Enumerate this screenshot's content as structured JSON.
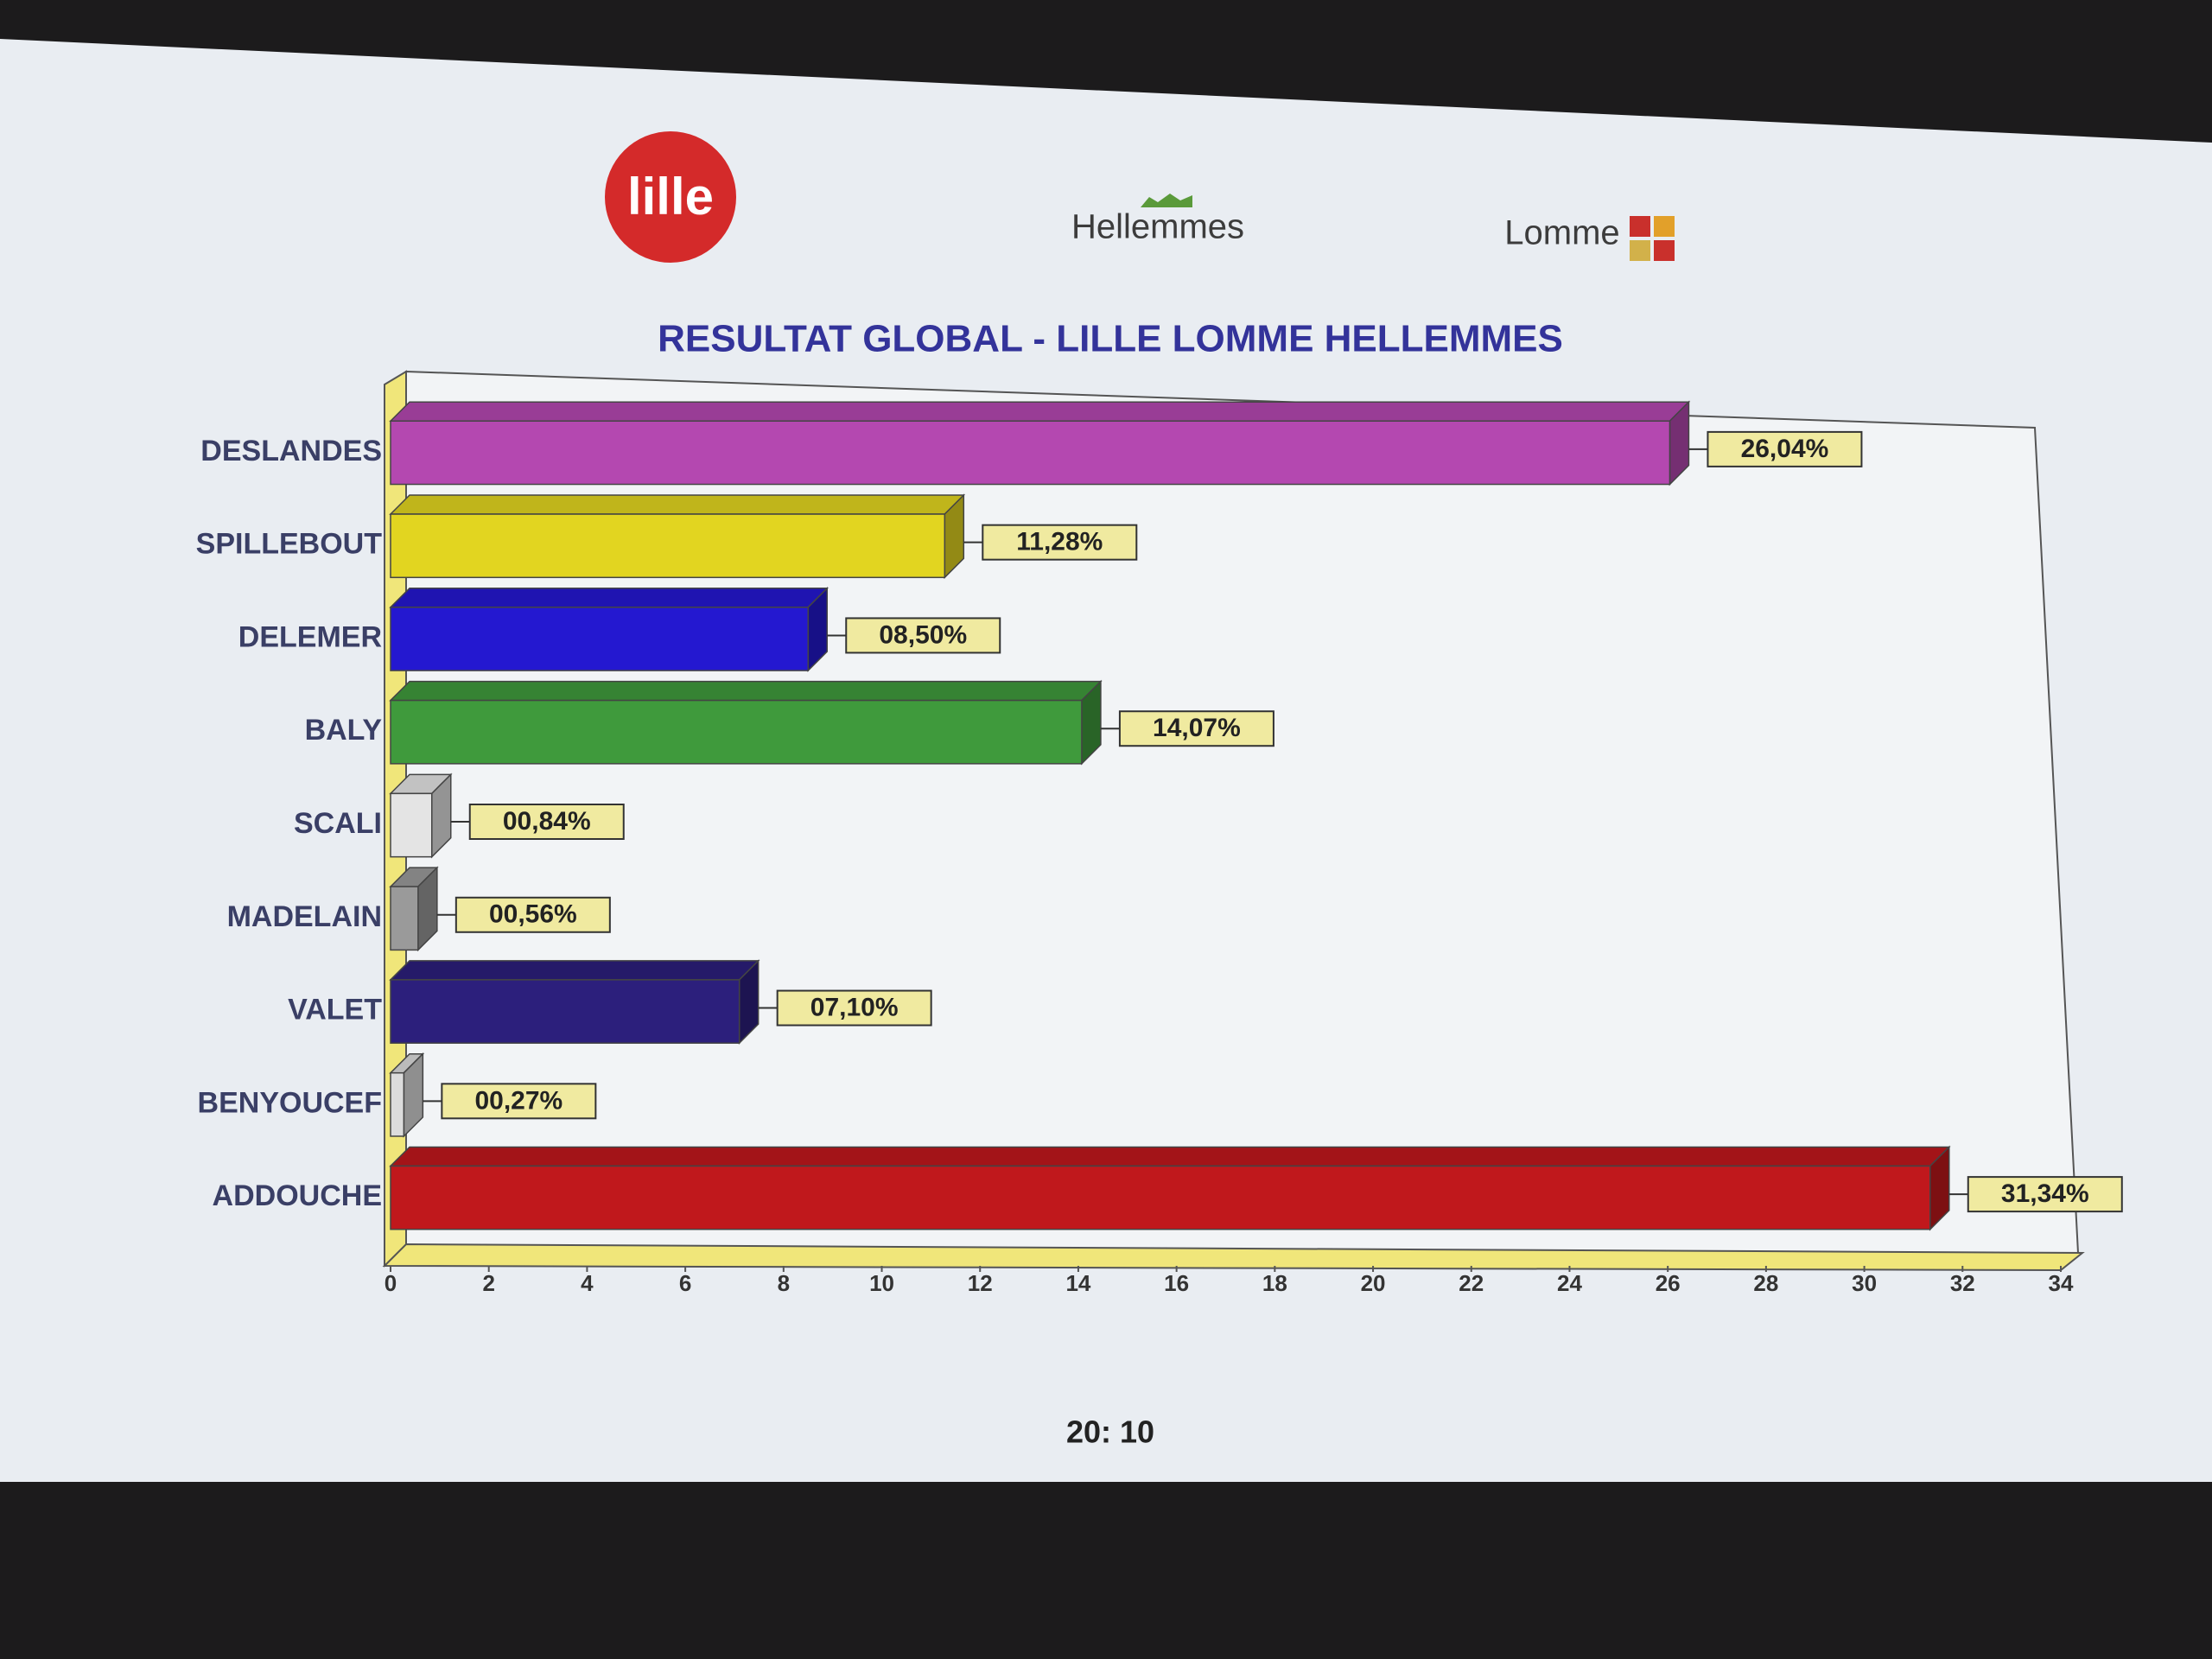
{
  "header": {
    "logos": [
      "lille",
      "Hellemmes",
      "Lomme"
    ]
  },
  "chart_data": {
    "type": "bar",
    "orientation": "horizontal",
    "title": "RESULTAT GLOBAL - LILLE LOMME HELLEMMES",
    "categories": [
      "DESLANDES",
      "SPILLEBOUT",
      "DELEMER",
      "BALY",
      "SCALI",
      "MADELAIN",
      "VALET",
      "BENYOUCEF",
      "ADDOUCHE"
    ],
    "values": [
      26.04,
      11.28,
      8.5,
      14.07,
      0.84,
      0.56,
      7.1,
      0.27,
      31.34
    ],
    "value_labels": [
      "26,04%",
      "11,28%",
      "08,50%",
      "14,07%",
      "00,84%",
      "00,56%",
      "07,10%",
      "00,27%",
      "31,34%"
    ],
    "colors": [
      "#b448b0",
      "#e2d520",
      "#2418d0",
      "#3f9a3c",
      "#e4e4e4",
      "#9a9a9a",
      "#2c1f7c",
      "#dcdcdc",
      "#c0181c"
    ],
    "xlim": [
      0,
      34
    ],
    "xticks": [
      0,
      2,
      4,
      6,
      8,
      10,
      12,
      14,
      16,
      18,
      20,
      22,
      24,
      26,
      28,
      30,
      32,
      34
    ]
  },
  "footer": {
    "time": "20: 10"
  }
}
